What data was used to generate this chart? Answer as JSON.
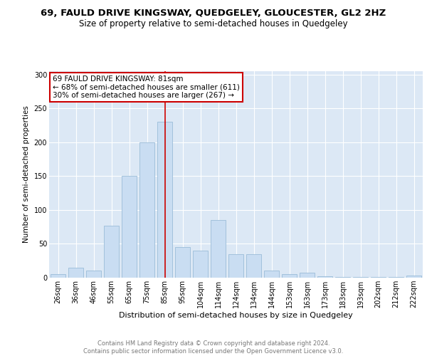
{
  "title1": "69, FAULD DRIVE KINGSWAY, QUEDGELEY, GLOUCESTER, GL2 2HZ",
  "title2": "Size of property relative to semi-detached houses in Quedgeley",
  "xlabel": "Distribution of semi-detached houses by size in Quedgeley",
  "ylabel": "Number of semi-detached properties",
  "categories": [
    "26sqm",
    "36sqm",
    "46sqm",
    "55sqm",
    "65sqm",
    "75sqm",
    "85sqm",
    "95sqm",
    "104sqm",
    "114sqm",
    "124sqm",
    "134sqm",
    "144sqm",
    "153sqm",
    "163sqm",
    "173sqm",
    "183sqm",
    "193sqm",
    "202sqm",
    "212sqm",
    "222sqm"
  ],
  "values": [
    5,
    15,
    10,
    77,
    150,
    200,
    230,
    45,
    40,
    85,
    35,
    35,
    10,
    5,
    7,
    2,
    1,
    1,
    1,
    1,
    3
  ],
  "bar_color": "#c9ddf2",
  "bar_edge_color": "#9bbcd8",
  "vline_x_index": 6,
  "vline_color": "#cc0000",
  "annotation_text": "69 FAULD DRIVE KINGSWAY: 81sqm\n← 68% of semi-detached houses are smaller (611)\n30% of semi-detached houses are larger (267) →",
  "annotation_box_color": "white",
  "annotation_box_edge": "#cc0000",
  "ylim": [
    0,
    305
  ],
  "yticks": [
    0,
    50,
    100,
    150,
    200,
    250,
    300
  ],
  "background_color": "#dce8f5",
  "grid_color": "white",
  "footer_text": "Contains HM Land Registry data © Crown copyright and database right 2024.\nContains public sector information licensed under the Open Government Licence v3.0.",
  "title1_fontsize": 9.5,
  "title2_fontsize": 8.5,
  "xlabel_fontsize": 8,
  "ylabel_fontsize": 7.5,
  "footer_fontsize": 6,
  "tick_fontsize": 7,
  "annot_fontsize": 7.5
}
